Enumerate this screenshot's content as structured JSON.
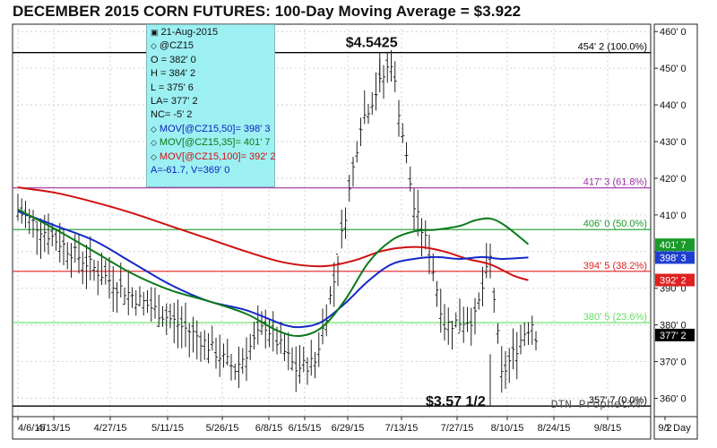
{
  "header": {
    "title": "DECEMBER 2015 CORN FUTURES:  100-Day Moving Average = $3.922"
  },
  "info_box": {
    "date": "21-Aug-2015",
    "symbol": "@CZ15",
    "open": "O = 382' 0",
    "high": "H = 384' 2",
    "low": "L = 375' 6",
    "last": "LA= 377' 2",
    "net_change": "NC= -5' 2",
    "mov50": "MOV[@CZ15,50]= 398' 3",
    "mov35": "MOV[@CZ15,35]= 401' 7",
    "mov100": "MOV[@CZ15,100]= 392' 2",
    "av": "A=-61.7, V=369' 0"
  },
  "annotations": {
    "high": "$4.5425",
    "low": "$3.57 1/2",
    "watermark": "DTN ProphetX®"
  },
  "footer": {
    "interval": "1 Day"
  },
  "chart_data": {
    "type": "line",
    "title": "DECEMBER 2015 CORN FUTURES:  100-Day Moving Average = $3.922",
    "ylim": [
      355,
      462
    ],
    "y_ticks": [
      {
        "v": 360,
        "label": "360' 0"
      },
      {
        "v": 370,
        "label": "370' 0"
      },
      {
        "v": 380,
        "label": "380' 0"
      },
      {
        "v": 390,
        "label": "390' 0"
      },
      {
        "v": 400,
        "label": "400' 0"
      },
      {
        "v": 410,
        "label": "410' 0"
      },
      {
        "v": 420,
        "label": "420' 0"
      },
      {
        "v": 430,
        "label": "430' 0"
      },
      {
        "v": 440,
        "label": "440' 0"
      },
      {
        "v": 450,
        "label": "450' 0"
      },
      {
        "v": 460,
        "label": "460' 0"
      }
    ],
    "x_ticks": [
      "4/6/15",
      "4/13/15",
      "4/27/15",
      "5/11/15",
      "5/26/15",
      "6/8/15",
      "6/15/15",
      "6/29/15",
      "7/13/15",
      "7/27/15",
      "8/10/15",
      "8/24/15",
      "9/8/15",
      "9/2"
    ],
    "fib_levels": [
      {
        "value": 454.25,
        "label": "454' 2 (100.0%)",
        "color": "#000000"
      },
      {
        "value": 417.375,
        "label": "417' 3 (61.8%)",
        "color": "#9a2fa0"
      },
      {
        "value": 406.0,
        "label": "406' 0 (50.0%)",
        "color": "#1a9a2a"
      },
      {
        "value": 394.625,
        "label": "394' 5 (38.2%)",
        "color": "#e02020"
      },
      {
        "value": 380.625,
        "label": "380' 5 (23.6%)",
        "color": "#60e060"
      },
      {
        "value": 357.875,
        "label": "357' 7 (0.0%)",
        "color": "#000000"
      }
    ],
    "right_badges": [
      {
        "value": 401.875,
        "label": "401' 7",
        "color": "#1a9a2a"
      },
      {
        "value": 398.375,
        "label": "398' 3",
        "color": "#1f3fd0"
      },
      {
        "value": 392.25,
        "label": "392' 2",
        "color": "#e02020"
      },
      {
        "value": 377.25,
        "label": "377' 2",
        "color": "#000000"
      }
    ],
    "bars": {
      "segments": [
        [
          0,
          27,
          411,
          390
        ],
        [
          27,
          47,
          390,
          377
        ],
        [
          47,
          57,
          377,
          368
        ],
        [
          57,
          65,
          368,
          380
        ],
        [
          65,
          73,
          380,
          368
        ],
        [
          73,
          78,
          368,
          370
        ],
        [
          78,
          83,
          370,
          392
        ],
        [
          83,
          90,
          392,
          435
        ],
        [
          90,
          98,
          435,
          452
        ],
        [
          98,
          104,
          452,
          412
        ],
        [
          104,
          108,
          412,
          400
        ],
        [
          108,
          112,
          400,
          380
        ],
        [
          112,
          120,
          380,
          382
        ],
        [
          120,
          124,
          382,
          398
        ],
        [
          124,
          127,
          398,
          366
        ],
        [
          127,
          133,
          366,
          378
        ],
        [
          133,
          136,
          378,
          382
        ]
      ],
      "count": 137
    },
    "series": [
      {
        "name": "MOV[@CZ15,100]",
        "color": "#d01010",
        "x": [
          0,
          10,
          20,
          30,
          40,
          50,
          60,
          70,
          80,
          88,
          95,
          100,
          106,
          112,
          118,
          124,
          130,
          134
        ],
        "y": [
          417.5,
          416.0,
          413.5,
          410.5,
          407.0,
          403.5,
          400.0,
          397.0,
          396.0,
          397.5,
          400.0,
          401.0,
          401.2,
          400.0,
          398.0,
          396.5,
          393.5,
          392.2
        ]
      },
      {
        "name": "MOV[@CZ15,50]",
        "color": "#1428c8",
        "x": [
          0,
          10,
          20,
          30,
          40,
          50,
          60,
          70,
          75,
          80,
          86,
          92,
          98,
          104,
          110,
          116,
          122,
          127,
          134
        ],
        "y": [
          411.0,
          407.0,
          403.0,
          397.0,
          391.0,
          386.5,
          384.0,
          380.0,
          379.5,
          381.0,
          386.0,
          392.0,
          396.5,
          398.0,
          398.5,
          398.0,
          398.5,
          398.0,
          398.4
        ]
      },
      {
        "name": "MOV[@CZ15,35]",
        "color": "#0a7a1a",
        "x": [
          0,
          10,
          20,
          30,
          40,
          50,
          60,
          68,
          74,
          80,
          86,
          92,
          98,
          104,
          110,
          116,
          120,
          124,
          128,
          134
        ],
        "y": [
          411.5,
          406.0,
          400.0,
          394.0,
          389.5,
          386.5,
          383.0,
          378.5,
          377.0,
          379.5,
          387.0,
          397.0,
          403.0,
          405.5,
          406.0,
          407.0,
          408.5,
          409.0,
          407.0,
          402.0
        ]
      }
    ],
    "grid": true
  }
}
